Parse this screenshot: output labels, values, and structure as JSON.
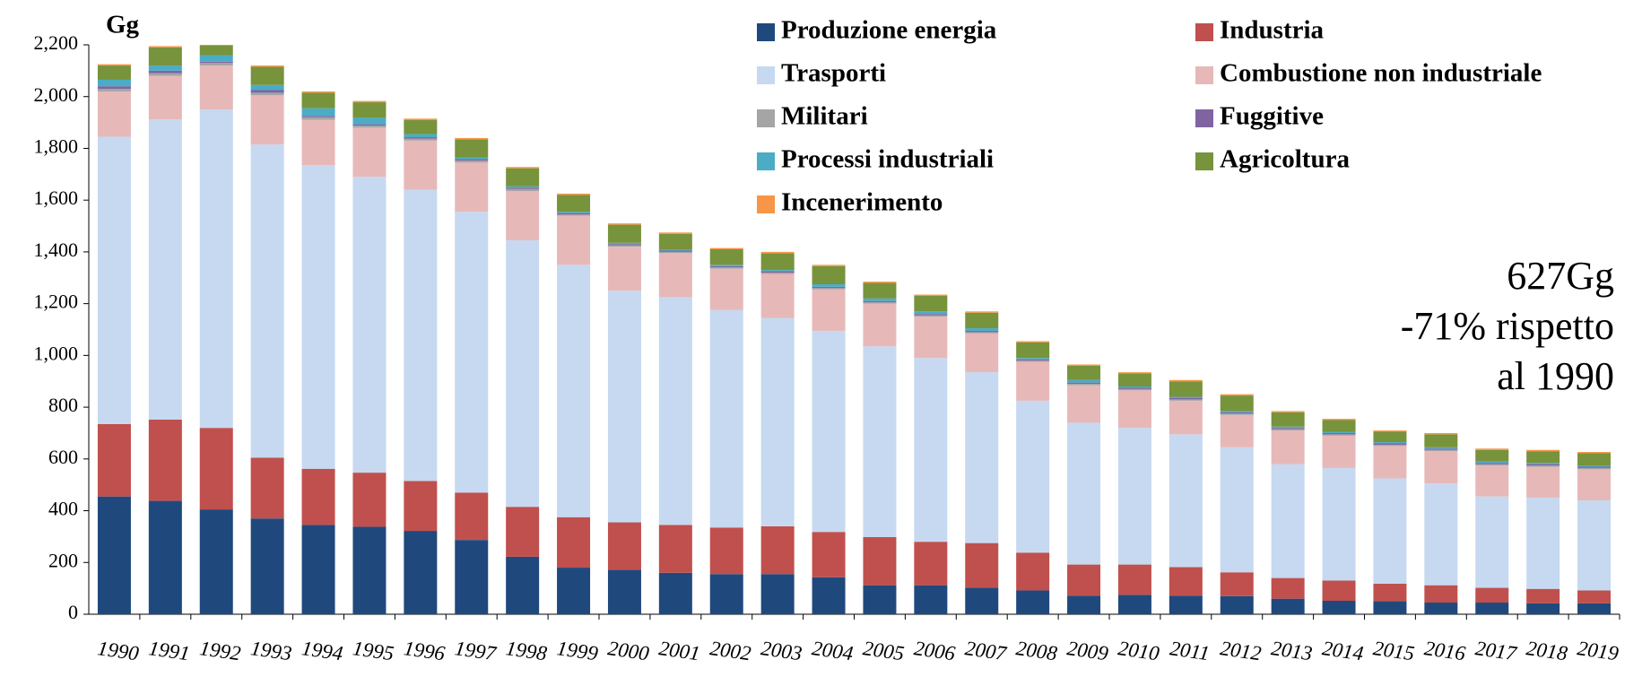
{
  "chart_data": {
    "type": "stacked-bar",
    "y_label": "Gg",
    "annotations": [
      "627Gg",
      "-71% rispetto",
      "al 1990"
    ],
    "categories": [
      "1990",
      "1991",
      "1992",
      "1993",
      "1994",
      "1995",
      "1996",
      "1997",
      "1998",
      "1999",
      "2000",
      "2001",
      "2002",
      "2003",
      "2004",
      "2005",
      "2006",
      "2007",
      "2008",
      "2009",
      "2010",
      "2011",
      "2012",
      "2013",
      "2014",
      "2015",
      "2016",
      "2017",
      "2018",
      "2019"
    ],
    "series": [
      {
        "name": "Produzione energia",
        "color": "#1f497d",
        "values": [
          455,
          438,
          405,
          370,
          345,
          338,
          322,
          287,
          222,
          180,
          172,
          160,
          155,
          155,
          143,
          112,
          112,
          102,
          92,
          72,
          75,
          72,
          70,
          60,
          52,
          50,
          45,
          45,
          42,
          42
        ]
      },
      {
        "name": "Industria",
        "color": "#c0504d",
        "values": [
          280,
          314,
          315,
          235,
          217,
          209,
          193,
          183,
          193,
          195,
          183,
          185,
          180,
          185,
          175,
          186,
          168,
          173,
          146,
          120,
          117,
          110,
          92,
          80,
          78,
          68,
          67,
          57,
          56,
          50
        ]
      },
      {
        "name": "Trasporti",
        "color": "#c6d9f1",
        "values": [
          1110,
          1160,
          1230,
          1210,
          1173,
          1143,
          1125,
          1085,
          1030,
          975,
          895,
          880,
          840,
          805,
          777,
          737,
          710,
          660,
          587,
          548,
          528,
          513,
          483,
          440,
          435,
          407,
          393,
          353,
          352,
          348
        ]
      },
      {
        "name": "Combustione non industriale",
        "color": "#e6b9b8",
        "values": [
          175,
          168,
          170,
          190,
          175,
          190,
          190,
          190,
          190,
          190,
          170,
          170,
          160,
          170,
          160,
          165,
          160,
          150,
          150,
          145,
          145,
          130,
          125,
          130,
          125,
          125,
          125,
          120,
          120,
          120
        ]
      },
      {
        "name": "Militari",
        "color": "#a5a5a5",
        "values": [
          10,
          10,
          10,
          10,
          10,
          8,
          8,
          8,
          8,
          5,
          5,
          5,
          5,
          5,
          5,
          5,
          5,
          5,
          5,
          5,
          5,
          5,
          5,
          5,
          5,
          5,
          5,
          5,
          5,
          5
        ]
      },
      {
        "name": "Fuggitive",
        "color": "#8064a2",
        "values": [
          10,
          10,
          5,
          10,
          5,
          5,
          5,
          5,
          5,
          5,
          5,
          5,
          5,
          5,
          5,
          5,
          5,
          5,
          5,
          5,
          5,
          5,
          5,
          5,
          5,
          5,
          5,
          5,
          5,
          5
        ]
      },
      {
        "name": "Processi industriali",
        "color": "#4bacc6",
        "values": [
          25,
          20,
          25,
          20,
          30,
          25,
          12,
          7,
          5,
          5,
          5,
          5,
          5,
          5,
          10,
          10,
          10,
          10,
          5,
          10,
          5,
          5,
          5,
          5,
          5,
          5,
          5,
          5,
          5,
          5
        ]
      },
      {
        "name": "Agricoltura",
        "color": "#77933c",
        "values": [
          55,
          70,
          38,
          70,
          60,
          60,
          55,
          70,
          70,
          65,
          70,
          60,
          60,
          65,
          70,
          60,
          60,
          60,
          60,
          55,
          50,
          60,
          60,
          55,
          45,
          40,
          50,
          45,
          45,
          47
        ]
      },
      {
        "name": "Incenerimento",
        "color": "#f79646",
        "values": [
          5,
          5,
          2,
          5,
          5,
          5,
          5,
          5,
          5,
          5,
          5,
          5,
          5,
          5,
          5,
          5,
          5,
          5,
          5,
          5,
          5,
          5,
          5,
          5,
          5,
          5,
          5,
          5,
          5,
          5
        ]
      }
    ],
    "ylim": [
      0,
      2200
    ],
    "yticks": [
      0,
      200,
      400,
      600,
      800,
      {
        "value": 1000,
        "label": "1,000"
      },
      {
        "value": 1200,
        "label": "1,200"
      },
      {
        "value": 1400,
        "label": "1,400"
      },
      {
        "value": 1600,
        "label": "1,600"
      },
      {
        "value": 1800,
        "label": "1,800"
      },
      {
        "value": 2000,
        "label": "2,000"
      },
      {
        "value": 2200,
        "label": "2,200"
      }
    ]
  }
}
